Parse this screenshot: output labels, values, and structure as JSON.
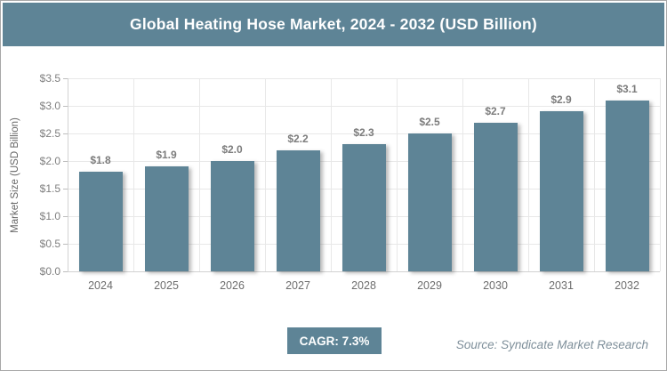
{
  "header": {
    "title": "Global Heating Hose Market, 2024 - 2032 (USD Billion)"
  },
  "colors": {
    "accent_teal": "#5E8496",
    "grid": "#e8e8e8",
    "tick_text": "#7f7f7f",
    "bar_label_text": "#7c7c7c",
    "source_text": "#7e8f9a"
  },
  "chart_data": {
    "type": "bar",
    "title": "Global Heating Hose Market, 2024 - 2032 (USD Billion)",
    "categories": [
      "2024",
      "2025",
      "2026",
      "2027",
      "2028",
      "2029",
      "2030",
      "2031",
      "2032"
    ],
    "values": [
      1.8,
      1.9,
      2.0,
      2.2,
      2.3,
      2.5,
      2.7,
      2.9,
      3.1
    ],
    "bar_labels": [
      "$1.8",
      "$1.9",
      "$2.0",
      "$2.2",
      "$2.3",
      "$2.5",
      "$2.7",
      "$2.9",
      "$3.1"
    ],
    "xlabel": "",
    "ylabel": "Market Size (USD Billion)",
    "ylim": [
      0,
      3.5
    ],
    "ytick_step": 0.5,
    "ytick_labels": [
      "$0.0",
      "$0.5",
      "$1.0",
      "$1.5",
      "$2.0",
      "$2.5",
      "$3.0",
      "$3.5"
    ],
    "grid": "on",
    "legend": "none",
    "bar_color": "#5E8496"
  },
  "footer": {
    "cagr_label": "CAGR: 7.3%",
    "source": "Source: Syndicate Market Research"
  }
}
